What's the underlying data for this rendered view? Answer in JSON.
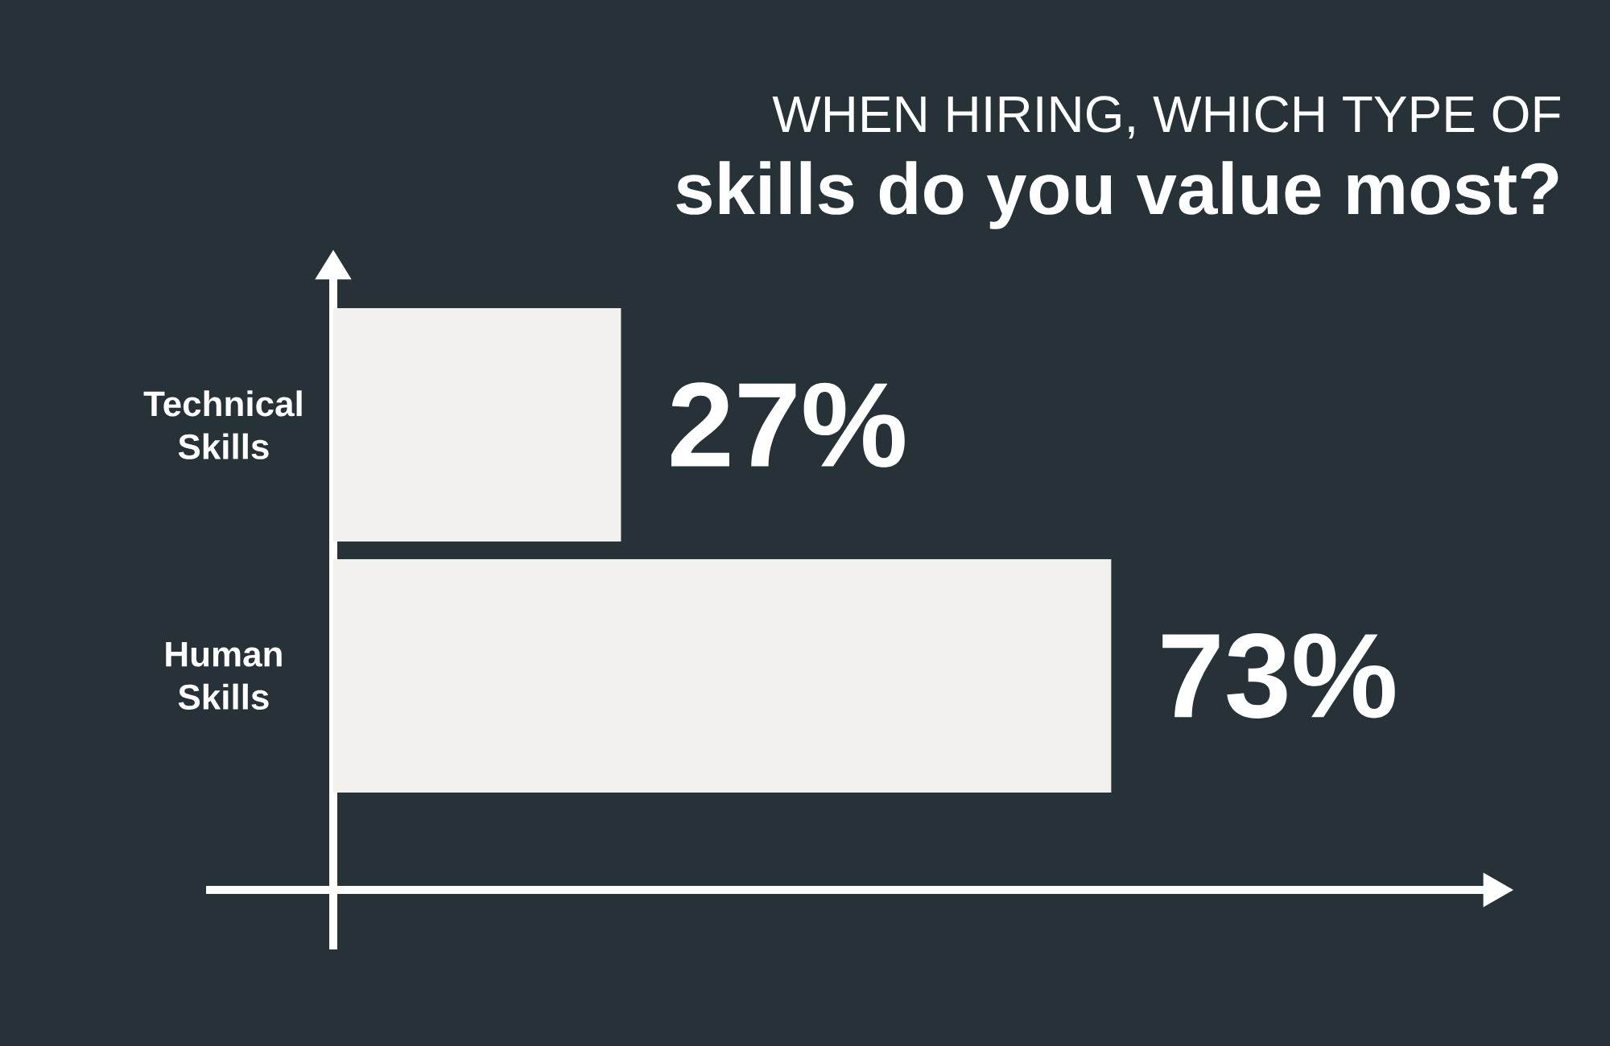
{
  "chart_data": {
    "type": "bar",
    "orientation": "horizontal",
    "title": "WHEN HIRING, WHICH TYPE OF",
    "subtitle": "skills do you value most?",
    "categories": [
      "Technical Skills",
      "Human Skills"
    ],
    "values": [
      27,
      73
    ],
    "value_labels": [
      "27%",
      "73%"
    ],
    "color": "#f3f1ed",
    "tick_labels": "y"
  }
}
